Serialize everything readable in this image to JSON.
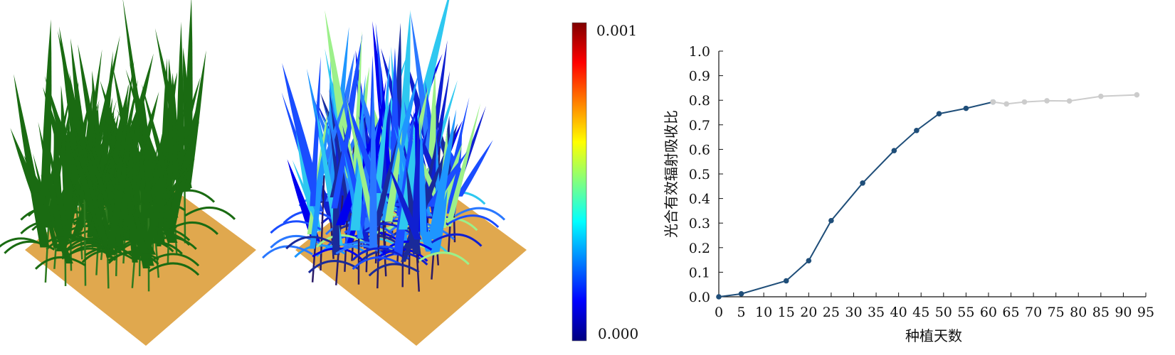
{
  "renders": {
    "left": {
      "name": "plant-canopy-render",
      "leaf_color": "#1a6b12",
      "ground_color": "#e0a84e"
    },
    "right": {
      "name": "absorption-heatmap-render",
      "ground_color": "#e0a84e"
    }
  },
  "colorbar": {
    "max_label": "0.001",
    "min_label": "0.000",
    "colors": [
      "#00007f",
      "#0000ff",
      "#0080ff",
      "#00ffff",
      "#80ff80",
      "#ffff00",
      "#ff8000",
      "#ff0000",
      "#7f0000"
    ]
  },
  "chart_data": {
    "type": "line",
    "xlabel": "种植天数",
    "ylabel": "光合有效辐射吸收比",
    "xlim": [
      0,
      95
    ],
    "ylim": [
      0,
      1.0
    ],
    "x_ticks": [
      "0",
      "5",
      "10",
      "15",
      "20",
      "25",
      "30",
      "35",
      "40",
      "45",
      "50",
      "55",
      "60",
      "65",
      "70",
      "75",
      "80",
      "85",
      "90",
      "95"
    ],
    "y_ticks": [
      "0.0",
      "0.1",
      "0.2",
      "0.3",
      "0.4",
      "0.5",
      "0.6",
      "0.7",
      "0.8",
      "0.9",
      "1.0"
    ],
    "series": [
      {
        "color": "#1f4e79",
        "points": [
          [
            0,
            0.0
          ],
          [
            5,
            0.012
          ],
          [
            15,
            0.065
          ],
          [
            20,
            0.147
          ],
          [
            25,
            0.31
          ],
          [
            32,
            0.463
          ],
          [
            39,
            0.595
          ],
          [
            44,
            0.677
          ],
          [
            49,
            0.745
          ],
          [
            55,
            0.767
          ],
          [
            61,
            0.793
          ]
        ]
      },
      {
        "color": "#cccccc",
        "points": [
          [
            61,
            0.793
          ],
          [
            64,
            0.785
          ],
          [
            68,
            0.793
          ],
          [
            73,
            0.798
          ],
          [
            78,
            0.797
          ],
          [
            85,
            0.816
          ],
          [
            93,
            0.822
          ]
        ]
      }
    ]
  }
}
